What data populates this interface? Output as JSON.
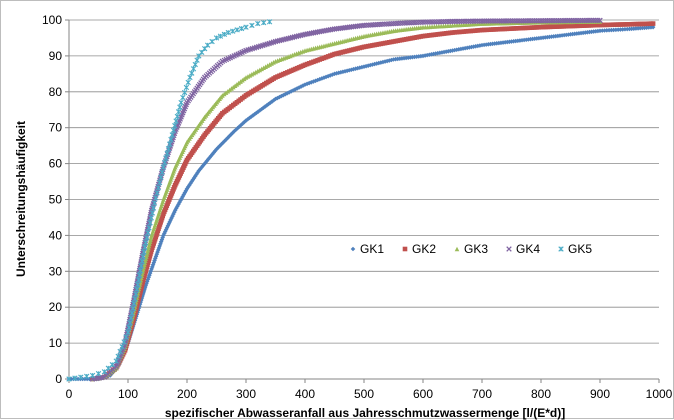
{
  "chart_data": {
    "type": "scatter",
    "xlabel": "spezifischer Abwasseranfall aus Jahresschmutzwassermenge [l/(E*d)]",
    "ylabel": "Unterschreitungshäufigkeit",
    "xlim": [
      0,
      1000
    ],
    "ylim": [
      0,
      100
    ],
    "xticks": [
      "0",
      "100",
      "200",
      "300",
      "400",
      "500",
      "600",
      "700",
      "800",
      "900",
      "1000"
    ],
    "yticks": [
      "0",
      "10",
      "20",
      "30",
      "40",
      "50",
      "60",
      "70",
      "80",
      "90",
      "100"
    ],
    "grid": "horizontal",
    "legend": "inside-center-right",
    "series": [
      {
        "name": "GK1",
        "color": "#4f81bd",
        "marker": "diamond",
        "points": [
          [
            0,
            0
          ],
          [
            50,
            0
          ],
          [
            70,
            1
          ],
          [
            85,
            4
          ],
          [
            100,
            10
          ],
          [
            115,
            18
          ],
          [
            130,
            26
          ],
          [
            145,
            33
          ],
          [
            160,
            40
          ],
          [
            180,
            47
          ],
          [
            200,
            53
          ],
          [
            220,
            58
          ],
          [
            250,
            64
          ],
          [
            280,
            69
          ],
          [
            300,
            72
          ],
          [
            350,
            78
          ],
          [
            400,
            82
          ],
          [
            450,
            85
          ],
          [
            500,
            87
          ],
          [
            550,
            89
          ],
          [
            600,
            90
          ],
          [
            650,
            91.5
          ],
          [
            700,
            93
          ],
          [
            750,
            94
          ],
          [
            800,
            95
          ],
          [
            850,
            96
          ],
          [
            900,
            97
          ],
          [
            950,
            97.5
          ],
          [
            990,
            98
          ]
        ]
      },
      {
        "name": "GK2",
        "color": "#c0504d",
        "marker": "square",
        "points": [
          [
            40,
            0
          ],
          [
            60,
            0.5
          ],
          [
            80,
            3
          ],
          [
            95,
            8
          ],
          [
            110,
            17
          ],
          [
            125,
            27
          ],
          [
            140,
            36
          ],
          [
            160,
            46
          ],
          [
            180,
            54
          ],
          [
            200,
            61
          ],
          [
            230,
            68
          ],
          [
            260,
            74
          ],
          [
            300,
            79
          ],
          [
            350,
            84
          ],
          [
            400,
            87.5
          ],
          [
            450,
            90.5
          ],
          [
            500,
            92.5
          ],
          [
            550,
            94
          ],
          [
            600,
            95.5
          ],
          [
            650,
            96.5
          ],
          [
            700,
            97.2
          ],
          [
            750,
            97.6
          ],
          [
            800,
            98
          ],
          [
            850,
            98.3
          ],
          [
            900,
            98.6
          ],
          [
            950,
            98.8
          ],
          [
            990,
            99
          ]
        ]
      },
      {
        "name": "GK3",
        "color": "#9bbb59",
        "marker": "triangle",
        "points": [
          [
            40,
            0
          ],
          [
            60,
            0.5
          ],
          [
            80,
            3
          ],
          [
            95,
            9
          ],
          [
            110,
            19
          ],
          [
            125,
            30
          ],
          [
            140,
            40
          ],
          [
            160,
            50
          ],
          [
            180,
            59
          ],
          [
            200,
            66
          ],
          [
            230,
            73
          ],
          [
            260,
            79
          ],
          [
            300,
            84
          ],
          [
            350,
            88.5
          ],
          [
            400,
            91.5
          ],
          [
            450,
            93.5
          ],
          [
            500,
            95.5
          ],
          [
            550,
            97
          ],
          [
            600,
            98
          ],
          [
            650,
            98.5
          ],
          [
            700,
            99
          ],
          [
            750,
            99.2
          ],
          [
            800,
            99.4
          ],
          [
            850,
            99.5
          ],
          [
            900,
            99.6
          ]
        ]
      },
      {
        "name": "GK4",
        "color": "#8064a2",
        "marker": "x",
        "points": [
          [
            40,
            0
          ],
          [
            60,
            0.5
          ],
          [
            80,
            3.5
          ],
          [
            95,
            10
          ],
          [
            110,
            22
          ],
          [
            125,
            35
          ],
          [
            140,
            47
          ],
          [
            160,
            59
          ],
          [
            180,
            69
          ],
          [
            200,
            77
          ],
          [
            230,
            84
          ],
          [
            260,
            88.5
          ],
          [
            300,
            91.5
          ],
          [
            350,
            94
          ],
          [
            400,
            96
          ],
          [
            450,
            97.5
          ],
          [
            500,
            98.5
          ],
          [
            550,
            99
          ],
          [
            600,
            99.4
          ],
          [
            650,
            99.6
          ],
          [
            700,
            99.7
          ],
          [
            800,
            99.8
          ],
          [
            900,
            99.9
          ]
        ]
      },
      {
        "name": "GK5",
        "color": "#4bacc6",
        "marker": "star",
        "points": [
          [
            0,
            0
          ],
          [
            20,
            0.5
          ],
          [
            40,
            1
          ],
          [
            60,
            2
          ],
          [
            80,
            5
          ],
          [
            100,
            13
          ],
          [
            115,
            25
          ],
          [
            130,
            38
          ],
          [
            145,
            49
          ],
          [
            160,
            59
          ],
          [
            175,
            68
          ],
          [
            190,
            77
          ],
          [
            205,
            84
          ],
          [
            220,
            90
          ],
          [
            235,
            93
          ],
          [
            250,
            95
          ],
          [
            270,
            96.5
          ],
          [
            300,
            98
          ],
          [
            320,
            99
          ],
          [
            340,
            99.5
          ]
        ]
      }
    ]
  }
}
